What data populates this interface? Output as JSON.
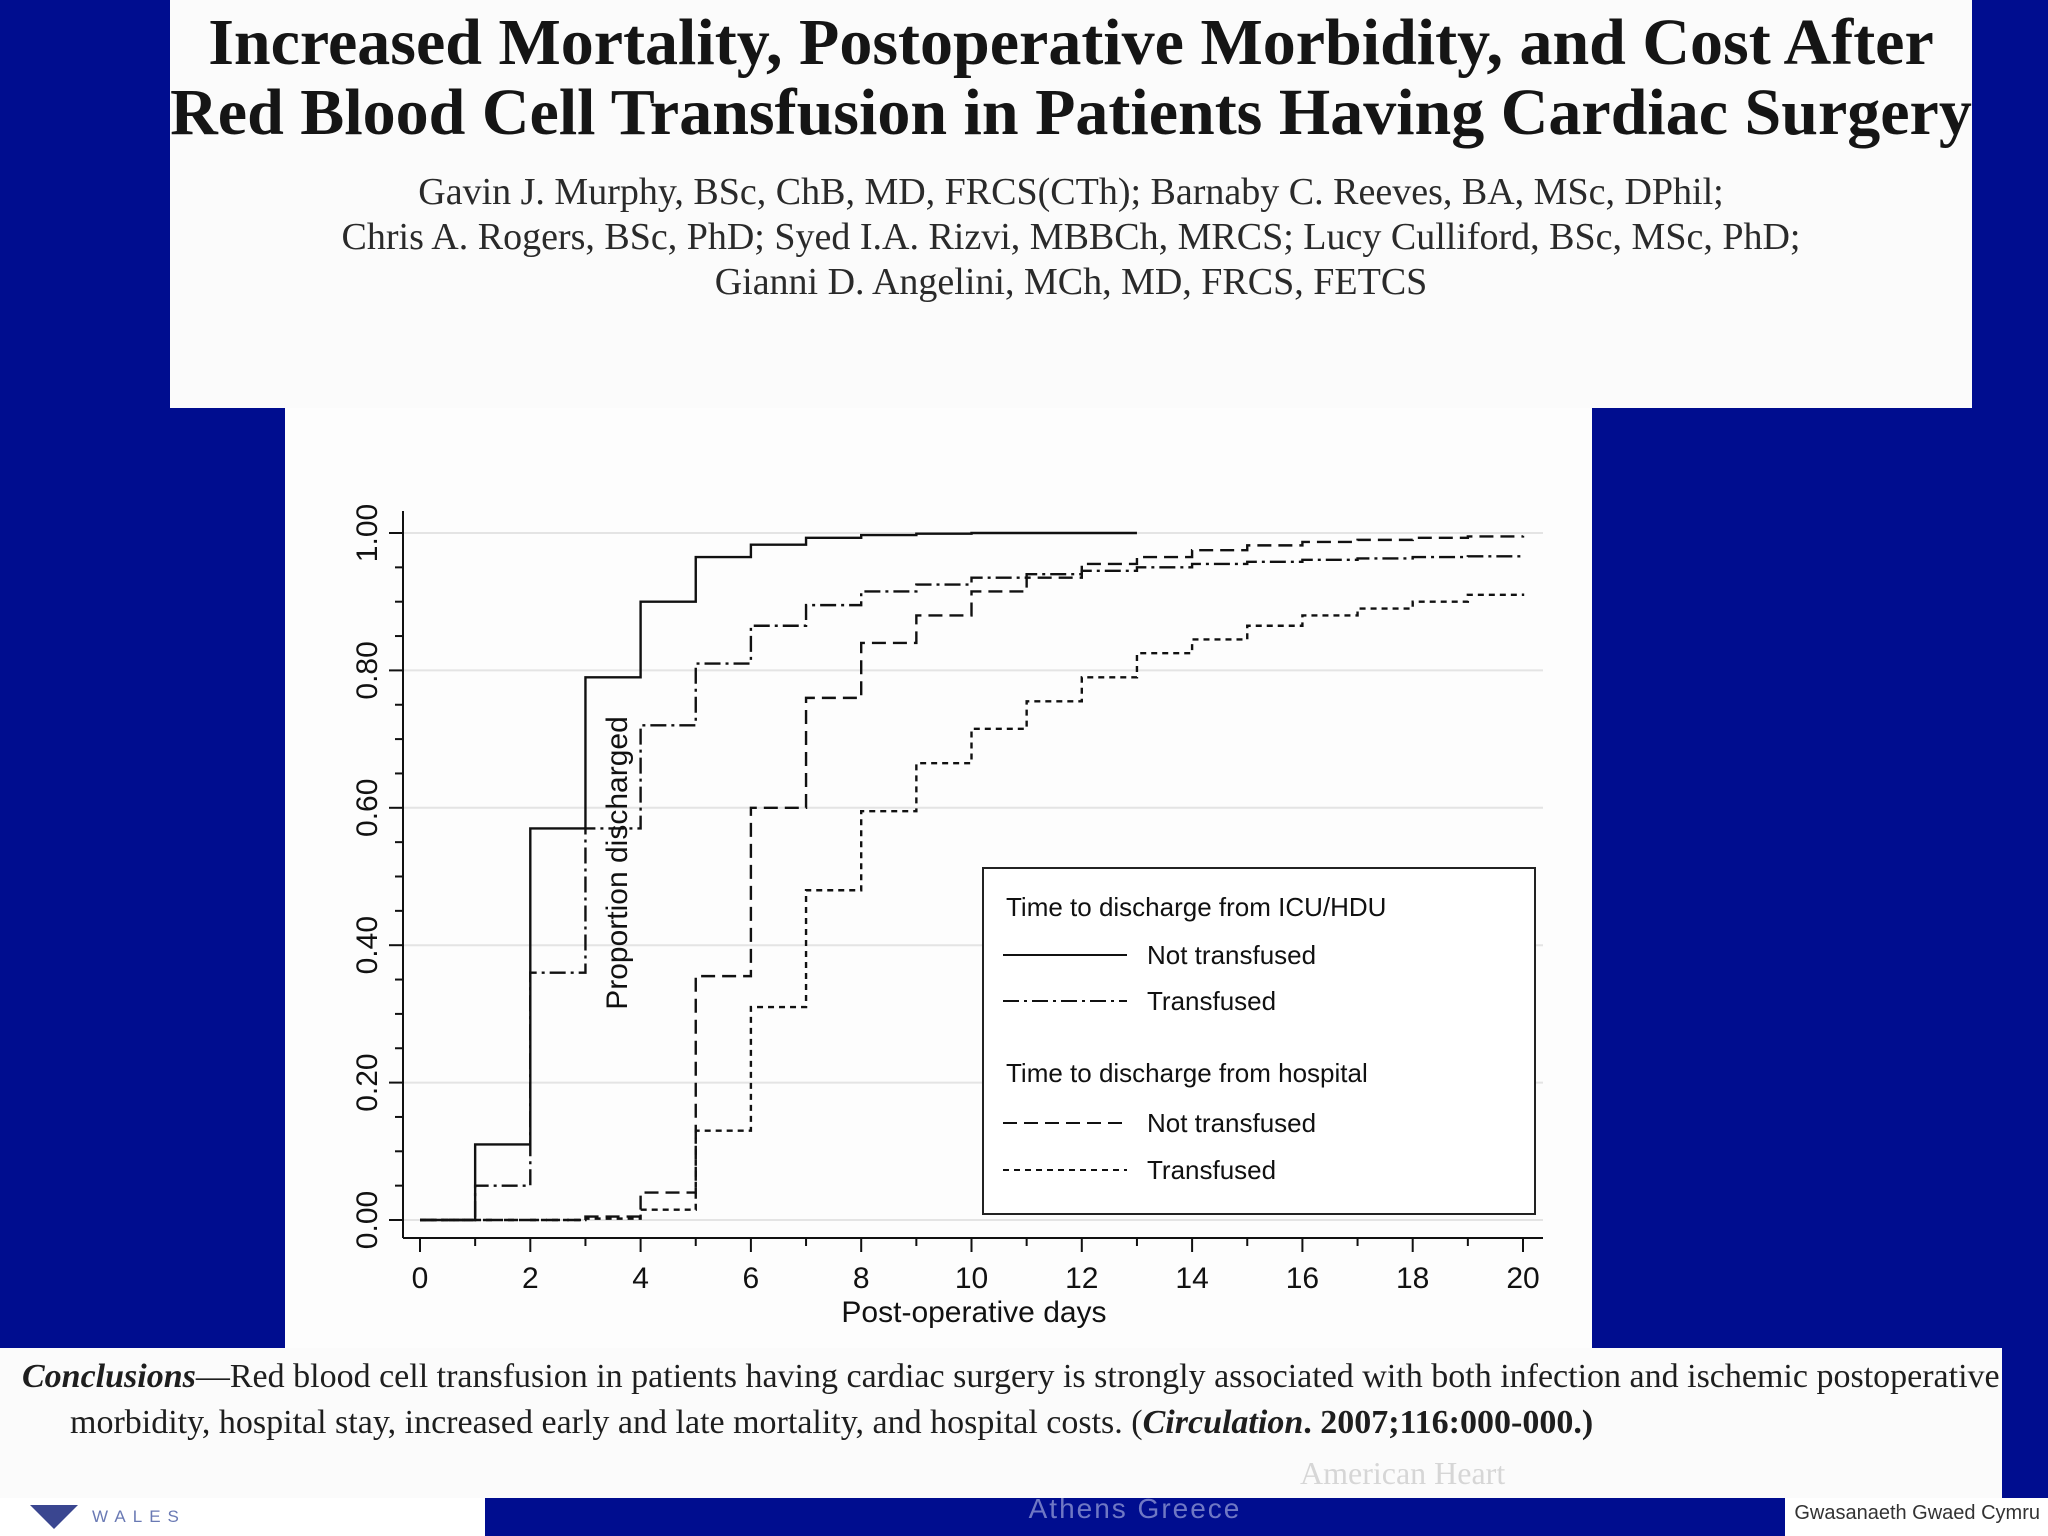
{
  "paper": {
    "title": "Increased Mortality, Postoperative Morbidity, and Cost After Red Blood Cell Transfusion in Patients Having Cardiac Surgery",
    "authors_line1": "Gavin J. Murphy, BSc, ChB, MD, FRCS(CTh); Barnaby C. Reeves, BA, MSc, DPhil;",
    "authors_line2": "Chris A. Rogers, BSc, PhD; Syed I.A. Rizvi, MBBCh, MRCS; Lucy Culliford, BSc, MSc, PhD;",
    "authors_line3": "Gianni D. Angelini, MCh, MD, FRCS, FETCS"
  },
  "chart_data": {
    "type": "line",
    "step": true,
    "title": "",
    "xlabel": "Post-operative days",
    "ylabel": "Proportion discharged",
    "xlim": [
      0,
      20
    ],
    "ylim": [
      0,
      1
    ],
    "x_ticks": [
      0,
      2,
      4,
      6,
      8,
      10,
      12,
      14,
      16,
      18,
      20
    ],
    "y_ticks": [
      "0.00",
      "0.20",
      "0.40",
      "0.60",
      "0.80",
      "1.00"
    ],
    "legend": {
      "placement": "lower-right",
      "group1_title": "Time to discharge from ICU/HDU",
      "group2_title": "Time to discharge from hospital"
    },
    "series": [
      {
        "name": "Not transfused",
        "group": "Time to discharge from ICU/HDU",
        "style": "solid",
        "x": [
          0,
          1,
          2,
          3,
          4,
          5,
          6,
          7,
          8,
          9,
          10,
          11,
          12,
          13
        ],
        "y": [
          0.0,
          0.11,
          0.57,
          0.79,
          0.9,
          0.965,
          0.983,
          0.993,
          0.997,
          0.999,
          1.0,
          1.0,
          1.0,
          1.0
        ]
      },
      {
        "name": "Transfused",
        "group": "Time to discharge from ICU/HDU",
        "style": "dashdot",
        "x": [
          0,
          1,
          2,
          3,
          4,
          5,
          6,
          7,
          8,
          9,
          10,
          11,
          12,
          13,
          14,
          15,
          16,
          17,
          18,
          19,
          20
        ],
        "y": [
          0.0,
          0.05,
          0.36,
          0.57,
          0.72,
          0.81,
          0.865,
          0.895,
          0.915,
          0.925,
          0.935,
          0.94,
          0.945,
          0.95,
          0.955,
          0.958,
          0.961,
          0.963,
          0.965,
          0.966,
          0.967
        ]
      },
      {
        "name": "Not transfused",
        "group": "Time to discharge from hospital",
        "style": "dashed",
        "x": [
          0,
          3,
          4,
          5,
          6,
          7,
          8,
          9,
          10,
          11,
          12,
          13,
          14,
          15,
          16,
          17,
          18,
          19,
          20
        ],
        "y": [
          0.0,
          0.005,
          0.04,
          0.355,
          0.6,
          0.76,
          0.84,
          0.88,
          0.915,
          0.935,
          0.955,
          0.965,
          0.975,
          0.982,
          0.987,
          0.99,
          0.993,
          0.995,
          0.996
        ]
      },
      {
        "name": "Transfused",
        "group": "Time to discharge from hospital",
        "style": "dotted",
        "x": [
          0,
          3,
          4,
          5,
          6,
          7,
          8,
          9,
          10,
          11,
          12,
          13,
          14,
          15,
          16,
          17,
          18,
          19,
          20
        ],
        "y": [
          0.0,
          0.002,
          0.015,
          0.13,
          0.31,
          0.48,
          0.595,
          0.665,
          0.715,
          0.755,
          0.79,
          0.825,
          0.845,
          0.865,
          0.88,
          0.89,
          0.9,
          0.91,
          0.912
        ]
      }
    ]
  },
  "conclusion": {
    "label": "Conclusions",
    "text": "—Red blood cell transfusion in patients having cardiac surgery is strongly associated with both infection and ischemic postoperative morbidity, hospital stay, increased early and late mortality, and hospital costs. (",
    "citation": "Circulation",
    "citation_tail": ". 2007;116:000-000.)"
  },
  "footer": {
    "logo_text": "WALES",
    "center_text": "Athens Greece",
    "right_text": "Gwasanaeth Gwaed Cymru",
    "stamp_text": "American Heart"
  }
}
